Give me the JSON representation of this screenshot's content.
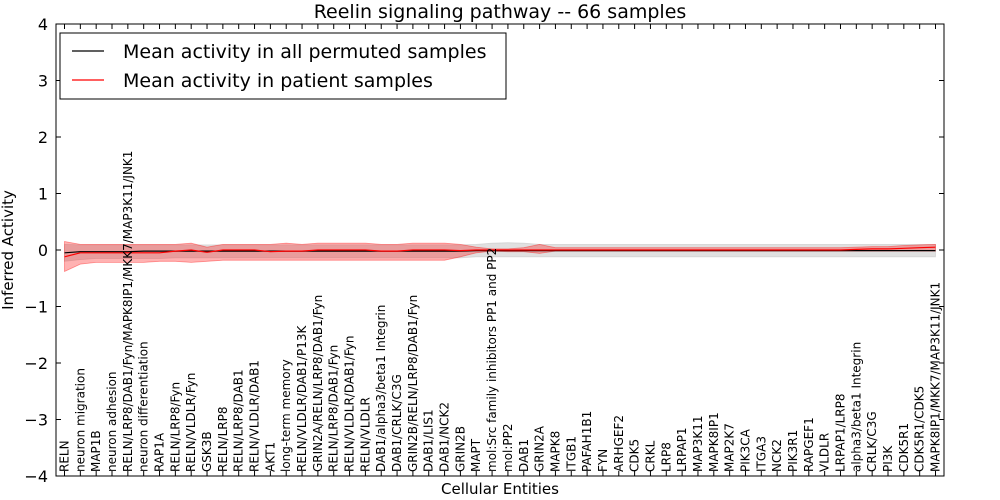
{
  "chart_data": {
    "type": "line",
    "title": "Reelin signaling pathway -- 66 samples",
    "xlabel": "Cellular Entities",
    "ylabel": "Inferred Activity",
    "ylim": [
      -4,
      4
    ],
    "yticks": [
      "−4",
      "−3",
      "−2",
      "−1",
      "0",
      "1",
      "2",
      "3",
      "4"
    ],
    "ytick_values": [
      -4,
      -3,
      -2,
      -1,
      0,
      1,
      2,
      3,
      4
    ],
    "categories": [
      "RELN",
      "neuron migration",
      "MAP1B",
      "neuron adhesion",
      "RELN/LRP8/DAB1/Fyn/MAPK8IP1/MKK7/MAP3K11/JNK1",
      "neuron differentiation",
      "RAP1A",
      "RELN/LRP8/Fyn",
      "RELN/VLDLR/Fyn",
      "GSK3B",
      "RELN/LRP8",
      "RELN/LRP8/DAB1",
      "RELN/VLDLR/DAB1",
      "AKT1",
      "long-term memory",
      "RELN/VLDLR/DAB1/P13K",
      "GRIN2A/RELN/LRP8/DAB1/Fyn",
      "RELN/LRP8/DAB1/Fyn",
      "RELN/VLDLR/DAB1/Fyn",
      "RELN/VLDLR",
      "DAB1/alpha3/beta1 Integrin",
      "DAB1/CRLK/C3G",
      "GRIN2B/RELN/LRP8/DAB1/Fyn",
      "DAB1/LIS1",
      "DAB1/NCK2",
      "GRIN2B",
      "MAPT",
      "mol:Src family inhibitors PP1 and PP2",
      "mol:PP2",
      "DAB1",
      "GRIN2A",
      "MAPK8",
      "ITGB1",
      "PAFAH1B1",
      "FYN",
      "ARHGEF2",
      "CDK5",
      "CRKL",
      "LRP8",
      "LRPAP1",
      "MAP3K11",
      "MAPK8IP1",
      "MAP2K7",
      "PIK3CA",
      "ITGA3",
      "NCK2",
      "PIK3R1",
      "RAPGEF1",
      "VLDLR",
      "LRPAP1/LRP8",
      "alpha3/beta1 Integrin",
      "CRLK/C3G",
      "PI3K",
      "CDK5R1",
      "CDK5R1/CDK5",
      "MAPK8IP1/MKK7/MAP3K11/JNK1"
    ],
    "series": [
      {
        "name": "Mean activity in all permuted samples",
        "color": "#000000",
        "band_color": "#bbbbbb",
        "values": [
          -0.05,
          -0.03,
          -0.03,
          -0.03,
          -0.03,
          -0.02,
          -0.02,
          -0.02,
          -0.02,
          -0.02,
          -0.02,
          -0.02,
          -0.02,
          -0.02,
          -0.02,
          -0.02,
          -0.02,
          -0.02,
          -0.02,
          -0.02,
          -0.02,
          -0.02,
          -0.02,
          -0.02,
          -0.02,
          -0.02,
          -0.01,
          -0.01,
          -0.01,
          -0.01,
          -0.01,
          -0.01,
          -0.01,
          -0.01,
          -0.01,
          -0.01,
          -0.01,
          -0.01,
          -0.01,
          -0.01,
          -0.01,
          -0.01,
          -0.01,
          -0.01,
          -0.01,
          -0.01,
          -0.01,
          -0.01,
          -0.01,
          -0.01,
          -0.01,
          -0.01,
          -0.01,
          -0.01,
          -0.01,
          -0.01
        ],
        "lower": [
          -0.2,
          -0.17,
          -0.15,
          -0.15,
          -0.15,
          -0.15,
          -0.15,
          -0.14,
          -0.14,
          -0.14,
          -0.14,
          -0.14,
          -0.14,
          -0.14,
          -0.14,
          -0.14,
          -0.14,
          -0.14,
          -0.14,
          -0.14,
          -0.14,
          -0.14,
          -0.14,
          -0.14,
          -0.14,
          -0.14,
          -0.12,
          -0.12,
          -0.12,
          -0.12,
          -0.12,
          -0.12,
          -0.12,
          -0.12,
          -0.12,
          -0.12,
          -0.12,
          -0.12,
          -0.12,
          -0.12,
          -0.12,
          -0.12,
          -0.12,
          -0.12,
          -0.12,
          -0.12,
          -0.12,
          -0.12,
          -0.12,
          -0.12,
          -0.12,
          -0.12,
          -0.12,
          -0.12,
          -0.12,
          -0.12
        ],
        "upper": [
          0.1,
          0.09,
          0.09,
          0.09,
          0.09,
          0.09,
          0.09,
          0.09,
          0.09,
          0.09,
          0.09,
          0.09,
          0.09,
          0.09,
          0.09,
          0.09,
          0.09,
          0.09,
          0.09,
          0.09,
          0.09,
          0.09,
          0.09,
          0.09,
          0.09,
          0.09,
          0.1,
          0.12,
          0.13,
          0.12,
          0.1,
          0.1,
          0.1,
          0.1,
          0.1,
          0.1,
          0.1,
          0.1,
          0.1,
          0.1,
          0.1,
          0.1,
          0.1,
          0.1,
          0.1,
          0.1,
          0.1,
          0.1,
          0.1,
          0.1,
          0.1,
          0.1,
          0.1,
          0.1,
          0.1,
          0.1
        ]
      },
      {
        "name": "Mean activity in patient samples",
        "color": "#ff0000",
        "band_color": "#ff0000",
        "values": [
          -0.12,
          -0.05,
          -0.05,
          -0.05,
          -0.05,
          -0.05,
          -0.05,
          -0.02,
          0.0,
          -0.04,
          0.0,
          0.0,
          0.0,
          -0.03,
          -0.02,
          -0.02,
          0.0,
          0.0,
          0.0,
          0.0,
          -0.02,
          -0.02,
          0.0,
          0.0,
          0.0,
          -0.01,
          0.0,
          0.0,
          0.0,
          0.0,
          0.0,
          0.0,
          0.0,
          0.0,
          0.0,
          0.0,
          0.0,
          0.0,
          0.0,
          0.0,
          0.0,
          0.0,
          0.0,
          0.0,
          0.0,
          0.0,
          0.0,
          0.0,
          0.0,
          0.0,
          0.01,
          0.02,
          0.02,
          0.03,
          0.04,
          0.05
        ],
        "lower": [
          -0.38,
          -0.25,
          -0.22,
          -0.22,
          -0.22,
          -0.22,
          -0.2,
          -0.2,
          -0.22,
          -0.2,
          -0.18,
          -0.18,
          -0.18,
          -0.18,
          -0.18,
          -0.18,
          -0.18,
          -0.18,
          -0.18,
          -0.18,
          -0.18,
          -0.18,
          -0.18,
          -0.18,
          -0.18,
          -0.12,
          -0.05,
          -0.02,
          -0.03,
          -0.03,
          -0.06,
          -0.02,
          -0.02,
          -0.02,
          -0.02,
          -0.02,
          -0.02,
          -0.02,
          -0.02,
          -0.02,
          -0.02,
          -0.02,
          -0.02,
          -0.02,
          -0.02,
          -0.02,
          -0.02,
          -0.02,
          -0.02,
          -0.02,
          -0.02,
          -0.02,
          -0.02,
          -0.02,
          -0.02,
          -0.02
        ],
        "upper": [
          0.15,
          0.1,
          0.1,
          0.1,
          0.1,
          0.1,
          0.1,
          0.1,
          0.12,
          0.05,
          0.1,
          0.1,
          0.1,
          0.1,
          0.12,
          0.1,
          0.12,
          0.12,
          0.12,
          0.12,
          0.1,
          0.1,
          0.12,
          0.12,
          0.12,
          0.1,
          0.05,
          0.02,
          0.02,
          0.04,
          0.1,
          0.04,
          0.04,
          0.04,
          0.04,
          0.04,
          0.04,
          0.04,
          0.04,
          0.04,
          0.04,
          0.04,
          0.04,
          0.04,
          0.04,
          0.04,
          0.04,
          0.04,
          0.04,
          0.04,
          0.05,
          0.06,
          0.06,
          0.08,
          0.09,
          0.1
        ]
      }
    ],
    "legend_position": "top-left"
  }
}
